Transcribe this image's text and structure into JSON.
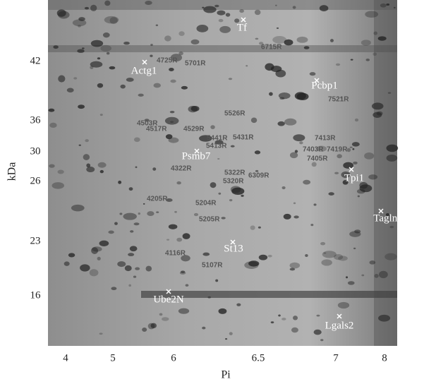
{
  "figure": {
    "y_axis": {
      "label": "kDa",
      "ticks": [
        42,
        36,
        30,
        26,
        23,
        16
      ]
    },
    "x_axis": {
      "label": "Pi",
      "ticks": [
        4,
        5,
        6,
        6.5,
        7,
        8
      ]
    },
    "protein_labels": [
      "Tf",
      "Actg1",
      "Pcbp1",
      "Psmb7",
      "Tpi1",
      "Tagln2",
      "St13",
      "Ube2N",
      "Lgals2"
    ],
    "spot_labels": [
      "6715R",
      "4725R",
      "5701R",
      "7521R",
      "5526R",
      "4503R",
      "4517R",
      "4529R",
      "5441R",
      "5431R",
      "5413R",
      "7413R",
      "7403R",
      "7419R",
      "7405R",
      "4322R",
      "5322R",
      "5320R",
      "6309R",
      "4205R",
      "5204R",
      "5205R",
      "4116R",
      "5107R"
    ]
  }
}
